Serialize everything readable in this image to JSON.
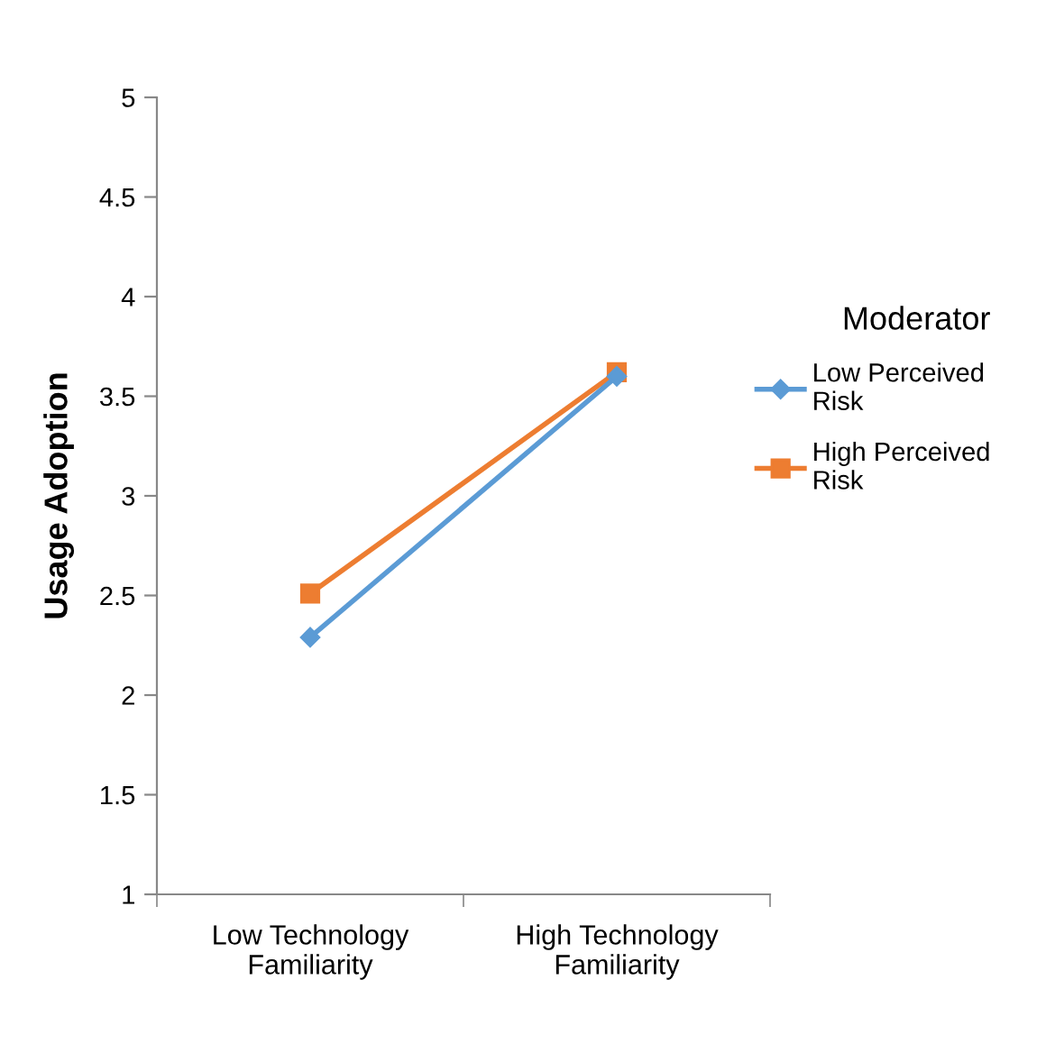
{
  "chart_data": {
    "type": "line",
    "ylabel": "Usage Adoption",
    "legend_title": "Moderator",
    "categories": [
      "Low Technology Familiarity",
      "High Technology Familiarity"
    ],
    "series": [
      {
        "name": "Low Perceived Risk",
        "color": "#5b9bd5",
        "marker": "diamond",
        "values": [
          2.29,
          3.6
        ]
      },
      {
        "name": "High Perceived Risk",
        "color": "#ed7d31",
        "marker": "square",
        "values": [
          2.51,
          3.62
        ]
      }
    ],
    "ylim": [
      1,
      5
    ],
    "yticks": [
      1,
      1.5,
      2,
      2.5,
      3,
      3.5,
      4,
      4.5,
      5
    ],
    "grid": false,
    "legend": "right"
  }
}
